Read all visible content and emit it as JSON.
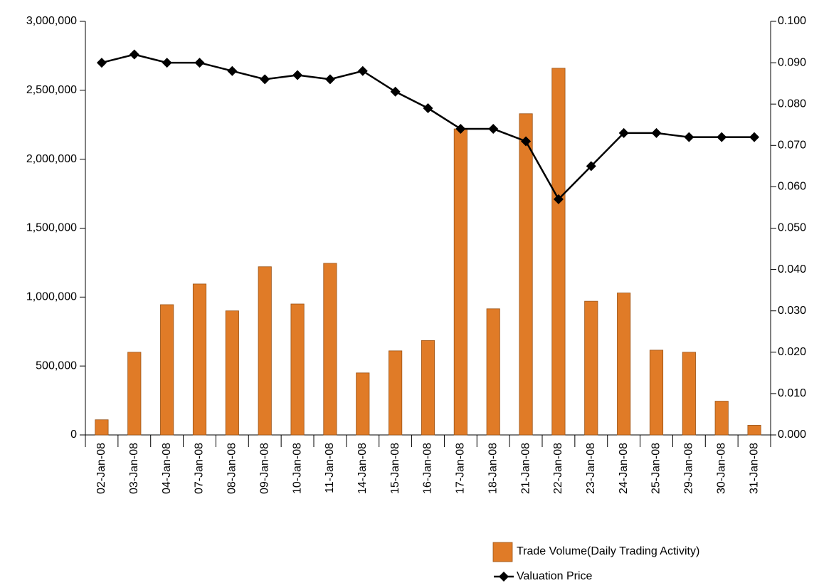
{
  "chart_data": {
    "type": "bar",
    "categories": [
      "02-Jan-08",
      "03-Jan-08",
      "04-Jan-08",
      "07-Jan-08",
      "08-Jan-08",
      "09-Jan-08",
      "10-Jan-08",
      "11-Jan-08",
      "14-Jan-08",
      "15-Jan-08",
      "16-Jan-08",
      "17-Jan-08",
      "18-Jan-08",
      "21-Jan-08",
      "22-Jan-08",
      "23-Jan-08",
      "24-Jan-08",
      "25-Jan-08",
      "29-Jan-08",
      "30-Jan-08",
      "31-Jan-08"
    ],
    "series": [
      {
        "name": "Trade Volume(Daily Trading Activity)",
        "type": "bar",
        "color": "#e07b27",
        "values": [
          110000,
          600000,
          945000,
          1095000,
          900000,
          1220000,
          950000,
          1245000,
          450000,
          610000,
          685000,
          2220000,
          915000,
          2330000,
          2660000,
          970000,
          1030000,
          615000,
          600000,
          245000,
          70000
        ]
      },
      {
        "name": "Valuation Price",
        "type": "line",
        "axis": "y2",
        "color": "#000000",
        "values": [
          0.09,
          0.092,
          0.09,
          0.09,
          0.088,
          0.086,
          0.087,
          0.086,
          0.088,
          0.083,
          0.079,
          0.074,
          0.074,
          0.071,
          0.057,
          0.065,
          0.073,
          0.073,
          0.072,
          0.072,
          0.072
        ]
      }
    ],
    "ylim": [
      0,
      3000000
    ],
    "yticks": [
      0,
      {
        "value": 500000,
        "label": "500,000"
      },
      {
        "value": 1000000,
        "label": "1,000,000"
      },
      {
        "value": 1500000,
        "label": "1,500,000"
      },
      {
        "value": 2000000,
        "label": "2,000,000"
      },
      {
        "value": 2500000,
        "label": "2,500,000"
      },
      {
        "value": 3000000,
        "label": "3,000,000"
      }
    ],
    "y2lim": [
      0,
      0.1
    ],
    "y2ticks": [
      {
        "value": 0,
        "label": "0.000"
      },
      {
        "value": 0.01,
        "label": "0.010"
      },
      {
        "value": 0.02,
        "label": "0.020"
      },
      {
        "value": 0.03,
        "label": "0.030"
      },
      {
        "value": 0.04,
        "label": "0.040"
      },
      {
        "value": 0.05,
        "label": "0.050"
      },
      {
        "value": 0.06,
        "label": "0.060"
      },
      {
        "value": 0.07,
        "label": "0.070"
      },
      {
        "value": 0.08,
        "label": "0.080"
      },
      {
        "value": 0.09,
        "label": "0.090"
      },
      {
        "value": 0.1,
        "label": "0.100"
      }
    ]
  }
}
